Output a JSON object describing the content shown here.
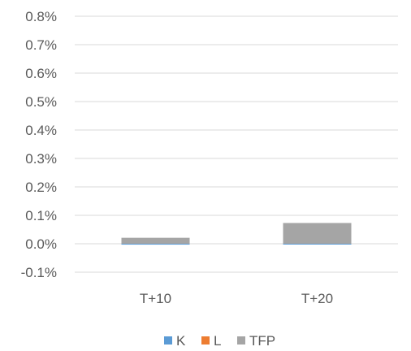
{
  "chart_data": {
    "type": "bar",
    "stacked": true,
    "categories": [
      "T+10",
      "T+20"
    ],
    "series": [
      {
        "name": "K",
        "color": "#5b9bd5",
        "values": [
          -0.003,
          -0.001
        ]
      },
      {
        "name": "L",
        "color": "#ed7d31",
        "values": [
          0.0,
          0.0
        ]
      },
      {
        "name": "TFP",
        "color": "#a5a5a5",
        "values": [
          0.021,
          0.073
        ]
      }
    ],
    "ylim": [
      -0.1,
      0.8
    ],
    "yticks": [
      -0.1,
      0.0,
      0.1,
      0.2,
      0.3,
      0.4,
      0.5,
      0.6,
      0.7,
      0.8
    ],
    "ytick_labels": [
      "-0.1%",
      "0.0%",
      "0.1%",
      "0.2%",
      "0.3%",
      "0.4%",
      "0.5%",
      "0.6%",
      "0.7%",
      "0.8%"
    ],
    "grid": true,
    "legend": "bottom-center",
    "title": "",
    "xlabel": "",
    "ylabel": ""
  }
}
